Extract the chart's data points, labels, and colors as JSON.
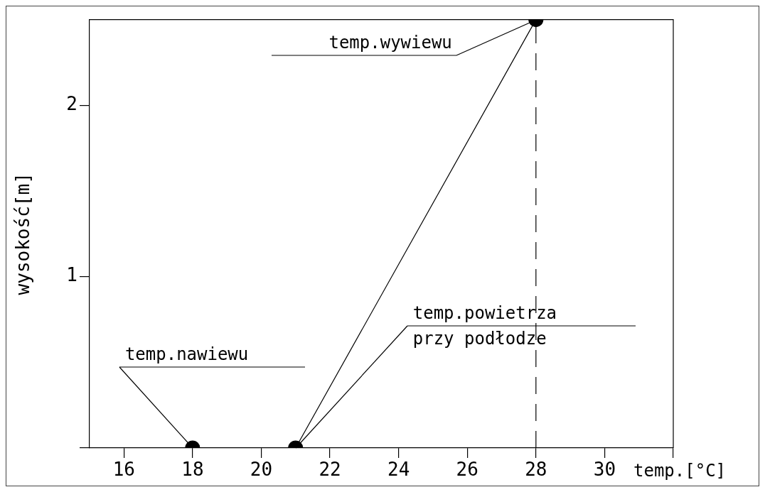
{
  "chart_data": {
    "type": "line",
    "xlabel": "temp.[°C]",
    "ylabel": "wysokość[m]",
    "x": [
      18,
      21,
      28
    ],
    "series": [
      {
        "color": "#000000",
        "values": [
          0,
          0,
          2.5
        ]
      }
    ],
    "xlim": [
      15,
      32
    ],
    "xticks": [
      16,
      18,
      20,
      22,
      24,
      26,
      28,
      30,
      {
        "value": 32,
        "label": null
      }
    ],
    "ylim": [
      0,
      2.5
    ],
    "yticks": [
      {
        "value": 0,
        "label": null
      },
      1,
      2
    ],
    "marker": "circle",
    "line_style": "solid",
    "grid": false,
    "legend": false,
    "ref_lines": [
      {
        "axis": "x",
        "value": 28,
        "line_style": "dashed",
        "color": "#000000"
      }
    ],
    "annotations": [
      {
        "text": "temp.nawiewu",
        "x": 18,
        "y": 0
      },
      {
        "text": "temp.wywiewu",
        "x": 28,
        "y": 2.5
      },
      {
        "text": "temp.powietrza\nprzy podłodze",
        "x": 21,
        "y": 0
      }
    ]
  }
}
